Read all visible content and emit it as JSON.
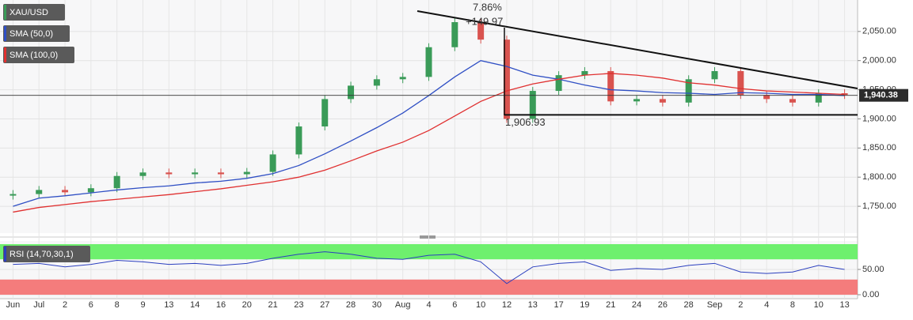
{
  "chart_data": [
    {
      "type": "candlestick",
      "categories": [
        "Jun",
        "Jul",
        "2",
        "6",
        "8",
        "9",
        "13",
        "14",
        "16",
        "20",
        "21",
        "23",
        "27",
        "28",
        "30",
        "Aug",
        "4",
        "6",
        "10",
        "12",
        "13",
        "17",
        "19",
        "21",
        "24",
        "26",
        "28",
        "Sep",
        "2",
        "4",
        "8",
        "10",
        "13"
      ],
      "series": [
        {
          "name": "XAU/USD",
          "color": "#3a9b58",
          "down_color": "#d9534f",
          "values": [
            1771,
            1778,
            1774,
            1781,
            1802,
            1808,
            1805,
            1808,
            1805,
            1809,
            1839,
            1887,
            1934,
            1957,
            1968,
            1972,
            2023,
            2066,
            2036,
            1900,
            1948,
            1975,
            1982,
            1930,
            1934,
            1928,
            1968,
            1982,
            1941,
            1934,
            1928,
            1944,
            1941
          ]
        },
        {
          "name": "SMA (50,0)",
          "color": "#2f4fc4",
          "values": [
            1750,
            1764,
            1768,
            1773,
            1778,
            1782,
            1785,
            1790,
            1793,
            1798,
            1806,
            1820,
            1840,
            1862,
            1885,
            1910,
            1940,
            1972,
            2000,
            1990,
            1975,
            1968,
            1958,
            1950,
            1948,
            1945,
            1944,
            1942,
            1945,
            1944,
            1942,
            1942,
            1940
          ]
        },
        {
          "name": "SMA (100,0)",
          "color": "#e03030",
          "values": [
            1740,
            1748,
            1753,
            1758,
            1762,
            1766,
            1770,
            1775,
            1780,
            1786,
            1792,
            1800,
            1812,
            1828,
            1845,
            1860,
            1880,
            1905,
            1930,
            1948,
            1960,
            1968,
            1975,
            1978,
            1975,
            1970,
            1962,
            1958,
            1952,
            1948,
            1946,
            1944,
            1942
          ]
        }
      ],
      "ylim": [
        1704,
        2104
      ],
      "yticks": [
        {
          "value": 1750,
          "label": "1,750.00"
        },
        {
          "value": 1800,
          "label": "1,800.00"
        },
        {
          "value": 1850,
          "label": "1,850.00"
        },
        {
          "value": 1900,
          "label": "1,900.00"
        },
        {
          "value": 1950,
          "label": "1,950.00"
        },
        {
          "value": 2000,
          "label": "2,000.00"
        },
        {
          "value": 2050,
          "label": "2,050.00"
        }
      ],
      "grid": true,
      "last_price": {
        "value": 1940.38,
        "label": "1,940.38"
      },
      "support": {
        "value": 1906.93,
        "label": "1,906.93"
      },
      "annotations": [
        {
          "text": "7.86%"
        },
        {
          "text": "+149.97"
        }
      ]
    },
    {
      "type": "line",
      "series": [
        {
          "name": "RSI (14,70,30,1)",
          "color": "#2b3fbf",
          "values": [
            60,
            62,
            55,
            60,
            68,
            65,
            60,
            62,
            58,
            62,
            72,
            80,
            85,
            80,
            72,
            70,
            78,
            80,
            65,
            22,
            55,
            62,
            65,
            48,
            52,
            50,
            58,
            62,
            45,
            42,
            45,
            58,
            50
          ]
        }
      ],
      "ylim": [
        0,
        100
      ],
      "yticks": [
        {
          "value": 0,
          "label": "0.00"
        },
        {
          "value": 50,
          "label": "50.00"
        }
      ],
      "overbought": 70,
      "oversold": 30,
      "overbought_color": "#6ef06e",
      "oversold_color": "#f47c7c"
    }
  ]
}
